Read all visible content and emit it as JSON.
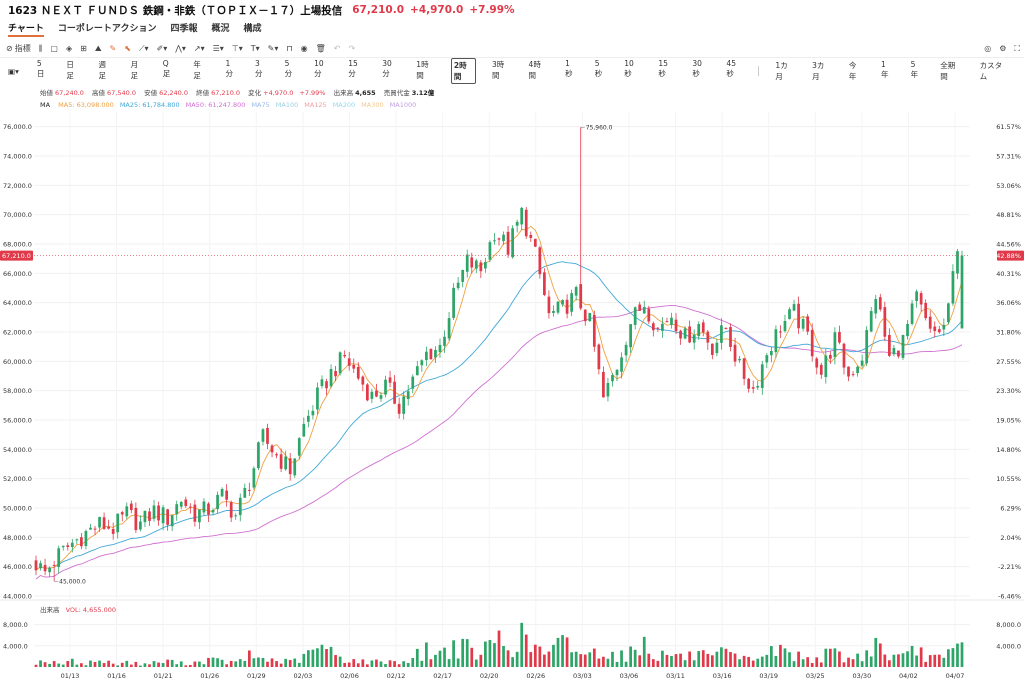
{
  "header": {
    "title": "1623 ＮＥＸＴ ＦＵＮＤＳ 鉄鋼・非鉄（ＴＯＰＩＸ－１７）上場投信",
    "price": "67,210.0",
    "change": "+4,970.0",
    "change_pct": "+7.99%"
  },
  "tabs": [
    {
      "label": "チャート",
      "active": true
    },
    {
      "label": "コーポレートアクション",
      "active": false
    },
    {
      "label": "四季報",
      "active": false
    },
    {
      "label": "概況",
      "active": false
    },
    {
      "label": "構成",
      "active": false
    }
  ],
  "toolbar": {
    "indicator_label": "指標"
  },
  "timeframes": {
    "group1": [
      "5日",
      "日足",
      "週足",
      "月足",
      "Q足",
      "年足",
      "1分",
      "3分",
      "5分",
      "10分",
      "15分",
      "30分",
      "1時間",
      "2時間",
      "3時間",
      "4時間",
      "1秒",
      "5秒",
      "10秒",
      "15秒",
      "30秒",
      "45秒"
    ],
    "group2": [
      "1カ月",
      "3カ月",
      "今年",
      "1年",
      "5年",
      "全期間",
      "カスタム"
    ],
    "active": "2時間"
  },
  "ohlc": {
    "open_label": "始値",
    "open": "67,240.0",
    "high_label": "高値",
    "high": "67,540.0",
    "low_label": "安値",
    "low": "62,240.0",
    "close_label": "終値",
    "close": "67,210.0",
    "change_label": "変化",
    "change": "+4,970.0",
    "change_pct": "+7.99%",
    "volume_label": "出来高",
    "volume": "4,655",
    "turnover_label": "売買代金",
    "turnover": "3.12億"
  },
  "ma_legend": {
    "prefix": "MA",
    "items": [
      {
        "label": "MA5: 63,098.000",
        "color": "#f0a040"
      },
      {
        "label": "MA25: 61,784.800",
        "color": "#40a8d8"
      },
      {
        "label": "MA50: 61,247.800",
        "color": "#d070d0"
      },
      {
        "label": "MA75",
        "color": "#9ab8e8"
      },
      {
        "label": "MA100",
        "color": "#9ad0e0"
      },
      {
        "label": "MA125",
        "color": "#f0a0a0"
      },
      {
        "label": "MA200",
        "color": "#90d8f0"
      },
      {
        "label": "MA300",
        "color": "#f0c890"
      },
      {
        "label": "MA1000",
        "color": "#c0a0e0"
      }
    ]
  },
  "volume_legend": {
    "label": "出来高",
    "value": "VOL: 4,655.000"
  },
  "chart_data": {
    "type": "candlestick",
    "y_ticks": [
      "76,000.0",
      "74,000.0",
      "72,000.0",
      "70,000.0",
      "68,000.0",
      "66,000.0",
      "64,000.0",
      "62,000.0",
      "60,000.0",
      "58,000.0",
      "56,000.0",
      "54,000.0",
      "52,000.0",
      "50,000.0",
      "48,000.0",
      "46,000.0",
      "44,000.0"
    ],
    "y_values": [
      76000,
      74000,
      72000,
      70000,
      68000,
      66000,
      64000,
      62000,
      60000,
      58000,
      56000,
      54000,
      52000,
      50000,
      48000,
      46000,
      44000
    ],
    "pct_ticks": [
      "61.57%",
      "57.31%",
      "53.06%",
      "48.81%",
      "44.56%",
      "40.31%",
      "36.06%",
      "31.80%",
      "27.55%",
      "23.30%",
      "19.05%",
      "14.80%",
      "10.55%",
      "6.29%",
      "2.04%",
      "-2.21%",
      "-6.46%"
    ],
    "x_ticks": [
      "01/13",
      "01/16",
      "01/21",
      "01/26",
      "01/29",
      "02/03",
      "02/06",
      "02/12",
      "02/17",
      "02/20",
      "02/26",
      "03/03",
      "03/06",
      "03/11",
      "03/16",
      "03/19",
      "03/25",
      "03/30",
      "04/02",
      "04/07"
    ],
    "vol_ticks": [
      "8,000.0",
      "4,000.0"
    ],
    "vol_values": [
      8000,
      4000
    ],
    "ylim": [
      44000,
      77000
    ],
    "current_price": 67210,
    "current_price_label": "67,210.0",
    "current_pct_label": "42.88%",
    "annotations": [
      {
        "label": "75,960.0",
        "value": 75960
      },
      {
        "label": "45,000.0",
        "value": 45000
      }
    ],
    "close_path": [
      46500,
      45600,
      46800,
      47600,
      48300,
      48900,
      48600,
      49600,
      48900,
      49800,
      49300,
      50600,
      49600,
      49900,
      50800,
      49500,
      51800,
      54800,
      53600,
      52600,
      55600,
      57600,
      59200,
      60300,
      58900,
      57600,
      58300,
      57000,
      58700,
      60500,
      61000,
      64400,
      66800,
      66200,
      68900,
      67700,
      70100,
      67200,
      63100,
      63600,
      64500,
      62600,
      57400,
      59700,
      62700,
      64000,
      62200,
      63200,
      61600,
      62500,
      61000,
      62300,
      59500,
      58100,
      60600,
      62400,
      63300,
      61700,
      59200,
      61500,
      59000,
      60400,
      64600,
      60200,
      61400,
      64300,
      61800,
      62300,
      67210
    ],
    "volume_path": [
      900,
      1400,
      600,
      1200,
      800,
      1500,
      700,
      1100,
      600,
      900,
      1300,
      800,
      1000,
      1600,
      1200,
      900,
      2400,
      1800,
      1400,
      1100,
      2000,
      4400,
      3200,
      1800,
      1300,
      1000,
      1500,
      900,
      2100,
      3600,
      2800,
      4800,
      3900,
      2400,
      6600,
      4700,
      6300,
      4100,
      2800,
      5300,
      3900,
      2600,
      4300,
      2300,
      3000,
      5400,
      2400,
      3000,
      2000,
      2800,
      1700,
      3300,
      1400,
      2100,
      2900,
      3800,
      2600,
      1900,
      2300,
      3100,
      1700,
      2500,
      5100,
      2400,
      2000,
      3600,
      2300,
      1600,
      4655
    ]
  }
}
